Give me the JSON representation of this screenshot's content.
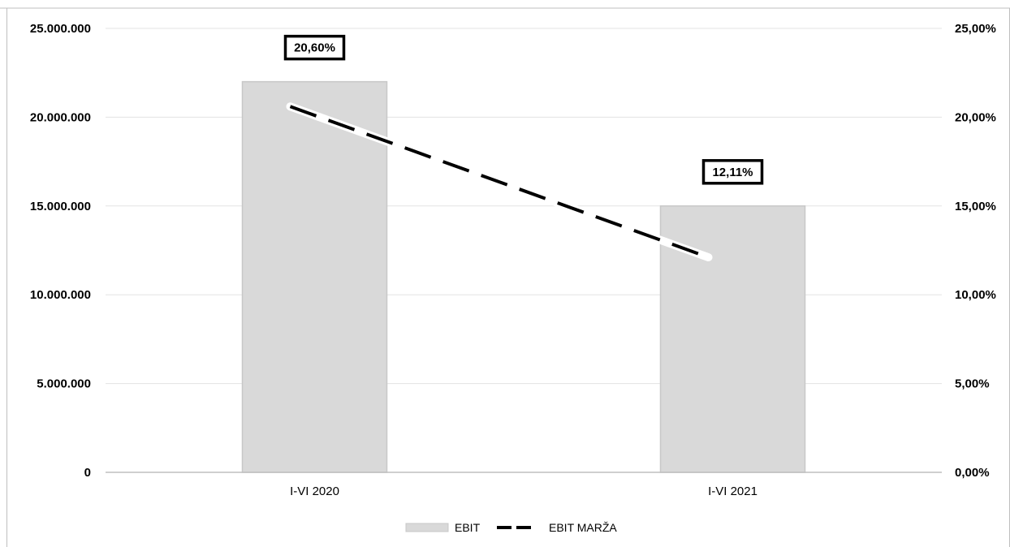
{
  "chart_data": {
    "type": "bar",
    "categories": [
      "I-VI 2020",
      "I-VI 2021"
    ],
    "series": [
      {
        "name": "EBIT",
        "type": "bar",
        "axis": "left",
        "values": [
          22000000,
          15000000
        ],
        "color": "#d9d9d9"
      },
      {
        "name": "EBIT MARŽA",
        "type": "line",
        "axis": "right",
        "style": "dashed",
        "values": [
          20.6,
          12.11
        ],
        "labels": [
          "20,60%",
          "12,11%"
        ],
        "color": "#000000"
      }
    ],
    "y_left": {
      "min": 0,
      "max": 25000000,
      "ticks": [
        0,
        5000000,
        10000000,
        15000000,
        20000000,
        25000000
      ],
      "tick_labels": [
        "0",
        "5.000.000",
        "10.000.000",
        "15.000.000",
        "20.000.000",
        "25.000.000"
      ]
    },
    "y_right": {
      "min": 0,
      "max": 25,
      "ticks": [
        0,
        5,
        10,
        15,
        20,
        25
      ],
      "tick_labels": [
        "0,00%",
        "5,00%",
        "10,00%",
        "15,00%",
        "20,00%",
        "25,00%"
      ]
    },
    "grid": true,
    "legend_position": "bottom"
  }
}
